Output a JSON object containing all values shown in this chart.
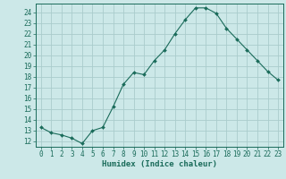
{
  "x": [
    0,
    1,
    2,
    3,
    4,
    5,
    6,
    7,
    8,
    9,
    10,
    11,
    12,
    13,
    14,
    15,
    16,
    17,
    18,
    19,
    20,
    21,
    22,
    23
  ],
  "y": [
    13.3,
    12.8,
    12.6,
    12.3,
    11.8,
    13.0,
    13.3,
    15.2,
    17.3,
    18.4,
    18.2,
    19.5,
    20.5,
    22.0,
    23.3,
    24.4,
    24.4,
    23.9,
    22.5,
    21.5,
    20.5,
    19.5,
    18.5,
    17.7
  ],
  "line_color": "#1a6b5a",
  "marker": "D",
  "marker_size": 2.0,
  "bg_color": "#cce8e8",
  "grid_color": "#aacccc",
  "xlabel": "Humidex (Indice chaleur)",
  "xlim": [
    -0.5,
    23.5
  ],
  "ylim": [
    11.5,
    24.8
  ],
  "yticks": [
    12,
    13,
    14,
    15,
    16,
    17,
    18,
    19,
    20,
    21,
    22,
    23,
    24
  ],
  "xticks": [
    0,
    1,
    2,
    3,
    4,
    5,
    6,
    7,
    8,
    9,
    10,
    11,
    12,
    13,
    14,
    15,
    16,
    17,
    18,
    19,
    20,
    21,
    22,
    23
  ],
  "tick_color": "#1a6b5a",
  "label_color": "#1a6b5a",
  "font_size": 5.5,
  "xlabel_fontsize": 6.5
}
